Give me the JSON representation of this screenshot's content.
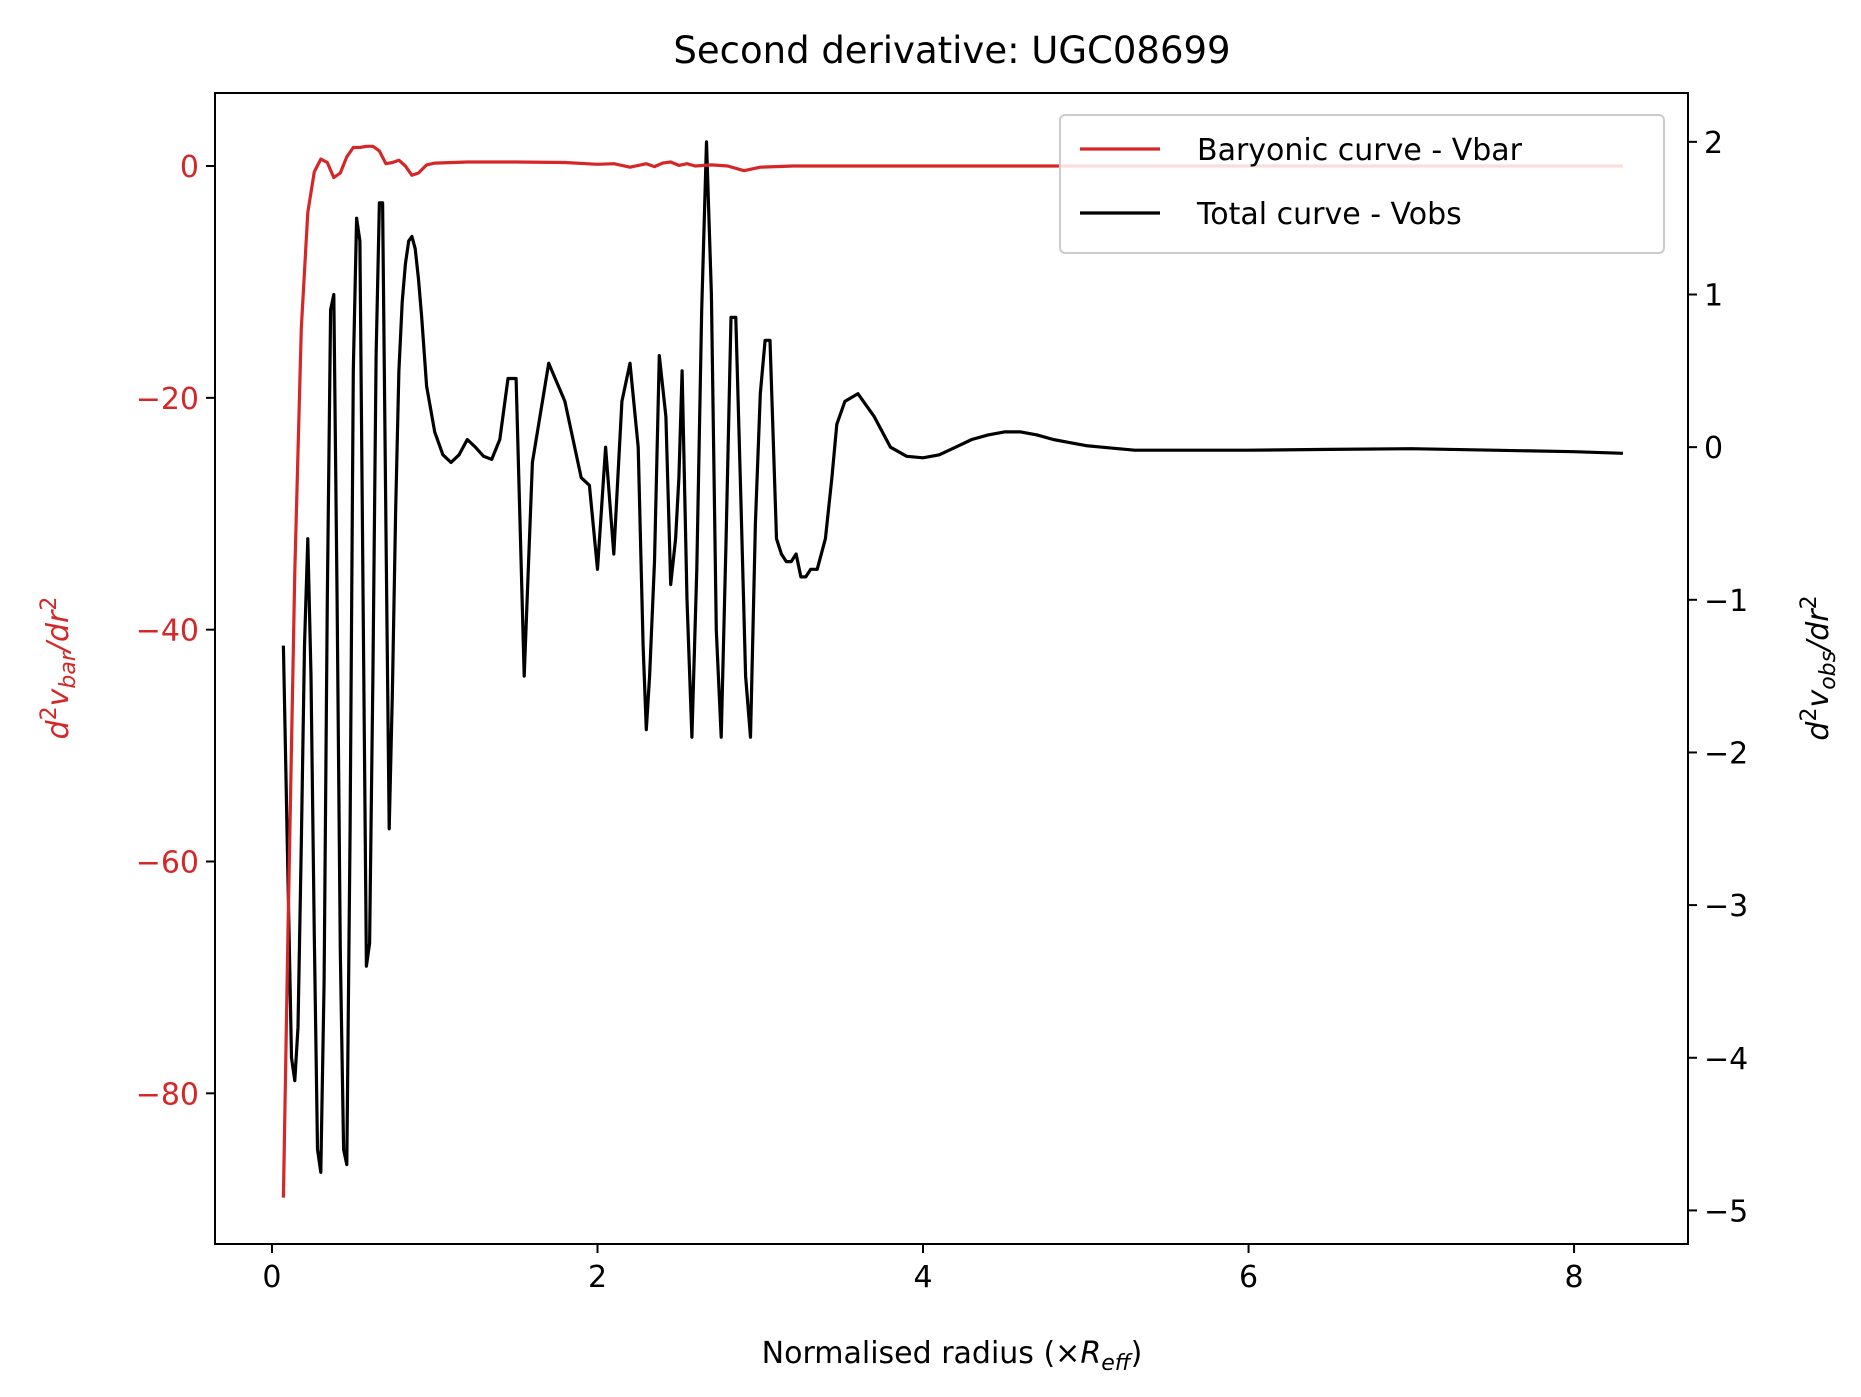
{
  "chart_data": {
    "type": "line",
    "title": "Second derivative: UGC08699",
    "xlabel": {
      "prefix": "Normalised radius (×",
      "symbol": "R",
      "sub": "eff",
      "suffix": ")"
    },
    "ylabel_left": {
      "pre": "d",
      "sup1": "2",
      "mid": "v",
      "sub": "bar",
      "post": "/dr",
      "sup2": "2"
    },
    "ylabel_right": {
      "pre": "d",
      "sup1": "2",
      "mid": "v",
      "sub": "obs",
      "post": "/dr",
      "sup2": "2"
    },
    "xlim": [
      -0.35,
      8.7
    ],
    "ylim_left": [
      -93,
      6.3
    ],
    "ylim_right": [
      -5.22,
      2.32
    ],
    "x_ticks": [
      {
        "value": 0,
        "label": "0"
      },
      {
        "value": 2,
        "label": "2"
      },
      {
        "value": 4,
        "label": "4"
      },
      {
        "value": 6,
        "label": "6"
      },
      {
        "value": 8,
        "label": "8"
      }
    ],
    "y_left_ticks": [
      {
        "value": 0,
        "label": "0"
      },
      {
        "value": -20,
        "label": "−20"
      },
      {
        "value": -40,
        "label": "−40"
      },
      {
        "value": -60,
        "label": "−60"
      },
      {
        "value": -80,
        "label": "−80"
      }
    ],
    "y_right_ticks": [
      {
        "value": 2,
        "label": "2"
      },
      {
        "value": 1,
        "label": "1"
      },
      {
        "value": 0,
        "label": "0"
      },
      {
        "value": -1,
        "label": "−1"
      },
      {
        "value": -2,
        "label": "−2"
      },
      {
        "value": -3,
        "label": "−3"
      },
      {
        "value": -4,
        "label": "−4"
      },
      {
        "value": -5,
        "label": "−5"
      }
    ],
    "legend": {
      "position": "top-right",
      "entries": [
        "Baryonic curve - Vbar",
        "Total curve - Vobs"
      ]
    },
    "colors": {
      "left_axis": "#d62728",
      "bar_series": "#d62728",
      "obs_series": "#000000",
      "frame": "#000000"
    },
    "series": [
      {
        "name": "Baryonic curve - Vbar",
        "axis": "left",
        "color": "#d62728",
        "x": [
          0.07,
          0.1,
          0.14,
          0.18,
          0.22,
          0.26,
          0.3,
          0.34,
          0.38,
          0.42,
          0.46,
          0.5,
          0.54,
          0.58,
          0.62,
          0.66,
          0.7,
          0.74,
          0.78,
          0.82,
          0.86,
          0.9,
          0.95,
          1.0,
          1.2,
          1.5,
          1.8,
          2.0,
          2.1,
          2.2,
          2.25,
          2.3,
          2.35,
          2.4,
          2.45,
          2.5,
          2.55,
          2.6,
          2.7,
          2.8,
          2.9,
          3.0,
          3.2,
          4.0,
          5.0,
          6.0,
          7.0,
          8.0,
          8.3
        ],
        "y": [
          -89,
          -65,
          -35,
          -14,
          -4,
          -0.5,
          0.6,
          0.3,
          -1.0,
          -0.6,
          0.8,
          1.6,
          1.6,
          1.7,
          1.7,
          1.3,
          0.2,
          0.3,
          0.5,
          0.0,
          -0.8,
          -0.6,
          0.1,
          0.25,
          0.35,
          0.35,
          0.3,
          0.15,
          0.2,
          -0.1,
          0.05,
          0.2,
          -0.05,
          0.25,
          0.35,
          0.05,
          0.2,
          0.0,
          0.1,
          0.0,
          -0.4,
          -0.1,
          0.0,
          0.0,
          0.0,
          0.0,
          0.0,
          0.0,
          0.0
        ]
      },
      {
        "name": "Total curve - Vobs",
        "axis": "right",
        "color": "#000000",
        "x": [
          0.07,
          0.1,
          0.12,
          0.14,
          0.16,
          0.18,
          0.2,
          0.22,
          0.24,
          0.26,
          0.28,
          0.3,
          0.32,
          0.34,
          0.36,
          0.38,
          0.4,
          0.42,
          0.44,
          0.46,
          0.48,
          0.5,
          0.52,
          0.54,
          0.56,
          0.58,
          0.6,
          0.62,
          0.64,
          0.66,
          0.68,
          0.7,
          0.72,
          0.74,
          0.76,
          0.78,
          0.8,
          0.82,
          0.84,
          0.86,
          0.88,
          0.9,
          0.92,
          0.95,
          1.0,
          1.05,
          1.1,
          1.15,
          1.2,
          1.25,
          1.3,
          1.35,
          1.4,
          1.45,
          1.5,
          1.55,
          1.6,
          1.7,
          1.8,
          1.9,
          1.95,
          2.0,
          2.05,
          2.1,
          2.15,
          2.2,
          2.25,
          2.28,
          2.3,
          2.32,
          2.35,
          2.38,
          2.42,
          2.45,
          2.48,
          2.5,
          2.52,
          2.55,
          2.58,
          2.61,
          2.64,
          2.67,
          2.7,
          2.73,
          2.76,
          2.79,
          2.82,
          2.85,
          2.88,
          2.91,
          2.94,
          2.97,
          3.0,
          3.03,
          3.06,
          3.1,
          3.13,
          3.16,
          3.19,
          3.22,
          3.25,
          3.28,
          3.31,
          3.35,
          3.4,
          3.44,
          3.47,
          3.52,
          3.6,
          3.7,
          3.8,
          3.9,
          4.0,
          4.1,
          4.2,
          4.3,
          4.4,
          4.5,
          4.6,
          4.7,
          4.8,
          4.9,
          5.0,
          5.1,
          5.2,
          5.3,
          5.4,
          5.5,
          5.7,
          6.0,
          6.5,
          7.0,
          7.5,
          8.0,
          8.3
        ],
        "y": [
          -1.3,
          -2.9,
          -4.0,
          -4.15,
          -3.8,
          -2.6,
          -1.3,
          -0.6,
          -1.5,
          -3.2,
          -4.6,
          -4.75,
          -3.5,
          -1.0,
          0.9,
          1.0,
          -1.0,
          -3.3,
          -4.6,
          -4.7,
          -2.5,
          0.5,
          1.5,
          1.35,
          -1.0,
          -3.4,
          -3.25,
          -1.5,
          0.6,
          1.6,
          1.6,
          -0.5,
          -2.5,
          -1.6,
          -0.4,
          0.5,
          0.95,
          1.2,
          1.35,
          1.38,
          1.3,
          1.1,
          0.85,
          0.4,
          0.1,
          -0.05,
          -0.1,
          -0.05,
          0.05,
          0.0,
          -0.06,
          -0.08,
          0.05,
          0.45,
          0.45,
          -1.5,
          -0.1,
          0.55,
          0.3,
          -0.2,
          -0.25,
          -0.8,
          0.0,
          -0.7,
          0.3,
          0.55,
          0.0,
          -1.3,
          -1.85,
          -1.5,
          -0.75,
          0.6,
          0.2,
          -0.9,
          -0.6,
          -0.2,
          0.5,
          -1.0,
          -1.9,
          -0.8,
          0.9,
          2.0,
          1.0,
          -1.2,
          -1.9,
          -0.6,
          0.85,
          0.85,
          -0.3,
          -1.5,
          -1.9,
          -0.5,
          0.35,
          0.7,
          0.7,
          -0.6,
          -0.7,
          -0.75,
          -0.75,
          -0.7,
          -0.85,
          -0.85,
          -0.8,
          -0.8,
          -0.6,
          -0.2,
          0.15,
          0.3,
          0.35,
          0.2,
          0.0,
          -0.06,
          -0.07,
          -0.05,
          0.0,
          0.05,
          0.08,
          0.1,
          0.1,
          0.08,
          0.05,
          0.03,
          0.01,
          0.0,
          -0.01,
          -0.02,
          -0.02,
          -0.02,
          -0.02,
          -0.02,
          -0.015,
          -0.01,
          -0.02,
          -0.03,
          -0.04
        ]
      }
    ]
  }
}
